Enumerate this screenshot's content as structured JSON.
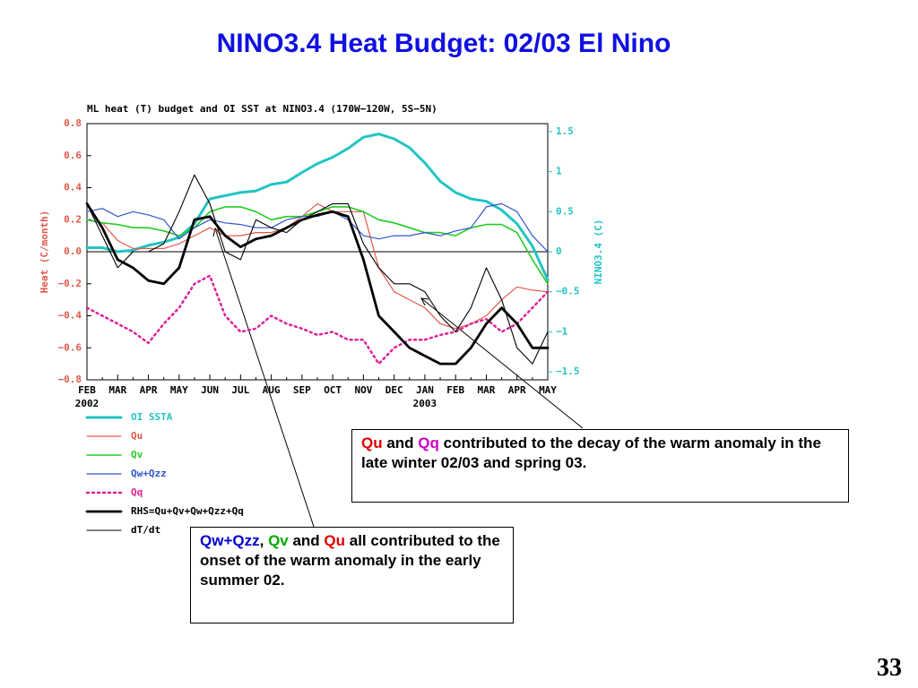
{
  "page_title": "NINO3.4 Heat Budget: 02/03 El Nino",
  "page_number": "33",
  "notes": [
    [
      {
        "text": "Qu",
        "color": "#e00000"
      },
      {
        "text": " and ",
        "color": "#000000"
      },
      {
        "text": "Qq",
        "color": "#cc00cc"
      },
      {
        "text": " contributed to the decay of the warm anomaly in the late winter 02/03 and spring 03.",
        "color": "#000000"
      }
    ],
    [
      {
        "text": "Qw+Qzz",
        "color": "#0000cc"
      },
      {
        "text": ", ",
        "color": "#000000"
      },
      {
        "text": "Qv",
        "color": "#00aa00"
      },
      {
        "text": " and ",
        "color": "#000000"
      },
      {
        "text": "Qu",
        "color": "#e00000"
      },
      {
        "text": " all contributed to the onset of the warm anomaly in the early summer 02.",
        "color": "#000000"
      }
    ]
  ],
  "chart_data": {
    "type": "line",
    "title": "ML heat (T) budget and OI SST at NINO3.4 (170W−120W, 5S−5N)",
    "ylabel": "Heat (C/month)",
    "y2label": "NINO3.4 (C)",
    "categories": [
      "FEB",
      null,
      "MAR",
      null,
      "APR",
      null,
      "MAY",
      null,
      "JUN",
      null,
      "JUL",
      null,
      "AUG",
      null,
      "SEP",
      null,
      "OCT",
      null,
      "NOV",
      null,
      "DEC",
      null,
      "JAN",
      null,
      "FEB",
      null,
      "MAR",
      null,
      "APR",
      null,
      "MAY"
    ],
    "years": [
      "2002",
      null,
      null,
      null,
      null,
      null,
      null,
      null,
      null,
      null,
      null,
      null,
      null,
      null,
      null,
      null,
      null,
      null,
      null,
      null,
      null,
      null,
      "2003",
      null,
      null,
      null,
      null,
      null,
      null,
      null,
      null
    ],
    "ylim": [
      -0.8,
      0.8
    ],
    "yticks": [
      {
        "value": -0.8,
        "label": "−0.8"
      },
      {
        "value": -0.6,
        "label": "−0.6"
      },
      {
        "value": -0.4,
        "label": "−0.4"
      },
      {
        "value": -0.2,
        "label": "−0.2"
      },
      {
        "value": 0,
        "label": "0.0"
      },
      0.2,
      0.4,
      0.6,
      0.8
    ],
    "y2lim": [
      -1.6,
      1.6
    ],
    "y2ticks": [
      {
        "value": -1.5,
        "label": "−1.5"
      },
      {
        "value": -1,
        "label": "−1"
      },
      {
        "value": -0.5,
        "label": "−0.5"
      },
      0,
      0.5,
      1,
      1.5
    ],
    "series": [
      {
        "name": "OI SSTA",
        "color": "#22c4c4",
        "width": 3,
        "axis": "y2",
        "values": [
          0.05,
          0.05,
          0.0,
          0.02,
          0.08,
          0.12,
          0.18,
          0.35,
          0.66,
          0.7,
          0.74,
          0.76,
          0.84,
          0.87,
          0.99,
          1.1,
          1.18,
          1.29,
          1.43,
          1.47,
          1.41,
          1.3,
          1.11,
          0.88,
          0.74,
          0.66,
          0.63,
          0.52,
          0.35,
          0.07,
          -0.35
        ]
      },
      {
        "name": "Qu",
        "color": "#e05a4a",
        "width": 1.2,
        "values": [
          0.2,
          0.18,
          0.07,
          0.02,
          0.02,
          0.02,
          0.05,
          0.1,
          0.15,
          0.1,
          0.1,
          0.12,
          0.12,
          0.15,
          0.22,
          0.3,
          0.25,
          0.25,
          0.25,
          -0.1,
          -0.25,
          -0.3,
          -0.35,
          -0.45,
          -0.48,
          -0.45,
          -0.4,
          -0.3,
          -0.22,
          -0.24,
          -0.25
        ]
      },
      {
        "name": "Qv",
        "color": "#22cc22",
        "width": 1.6,
        "values": [
          0.2,
          0.18,
          0.17,
          0.15,
          0.15,
          0.13,
          0.1,
          0.15,
          0.25,
          0.28,
          0.28,
          0.25,
          0.2,
          0.22,
          0.22,
          0.25,
          0.28,
          0.28,
          0.25,
          0.2,
          0.18,
          0.15,
          0.12,
          0.12,
          0.1,
          0.15,
          0.17,
          0.17,
          0.12,
          -0.05,
          -0.2
        ]
      },
      {
        "name": "Qw+Qzz",
        "color": "#3355cc",
        "width": 1.2,
        "values": [
          0.25,
          0.27,
          0.22,
          0.25,
          0.23,
          0.2,
          0.08,
          0.15,
          0.2,
          0.18,
          0.17,
          0.15,
          0.15,
          0.2,
          0.22,
          0.22,
          0.25,
          0.2,
          0.1,
          0.08,
          0.1,
          0.1,
          0.12,
          0.1,
          0.13,
          0.15,
          0.28,
          0.3,
          0.25,
          0.1,
          0.0
        ]
      },
      {
        "name": "Qq",
        "color": "#dd2299",
        "width": 2.5,
        "dotted": true,
        "values": [
          -0.35,
          -0.4,
          -0.45,
          -0.5,
          -0.57,
          -0.45,
          -0.35,
          -0.2,
          -0.15,
          -0.4,
          -0.5,
          -0.48,
          -0.4,
          -0.45,
          -0.48,
          -0.52,
          -0.5,
          -0.55,
          -0.55,
          -0.7,
          -0.6,
          -0.55,
          -0.55,
          -0.52,
          -0.5,
          -0.45,
          -0.42,
          -0.5,
          -0.45,
          -0.35,
          -0.25
        ]
      },
      {
        "name": "RHS=Qu+Qv+Qw+Qzz+Qq",
        "color": "#000000",
        "width": 2.8,
        "values": [
          0.3,
          0.15,
          -0.05,
          -0.1,
          -0.18,
          -0.2,
          -0.1,
          0.2,
          0.22,
          0.1,
          0.03,
          0.08,
          0.1,
          0.15,
          0.2,
          0.23,
          0.25,
          0.22,
          -0.05,
          -0.4,
          -0.5,
          -0.6,
          -0.65,
          -0.7,
          -0.7,
          -0.6,
          -0.45,
          -0.35,
          -0.45,
          -0.6,
          -0.6
        ]
      },
      {
        "name": "dT/dt",
        "color": "#000000",
        "width": 1.1,
        "values": [
          0.3,
          0.1,
          -0.1,
          0.0,
          0.0,
          0.05,
          0.25,
          0.48,
          0.3,
          0.0,
          -0.05,
          0.2,
          0.15,
          0.12,
          0.2,
          0.25,
          0.3,
          0.3,
          0.05,
          -0.1,
          -0.2,
          -0.2,
          -0.25,
          -0.4,
          -0.5,
          -0.35,
          -0.1,
          -0.3,
          -0.6,
          -0.7,
          -0.5
        ]
      }
    ]
  }
}
